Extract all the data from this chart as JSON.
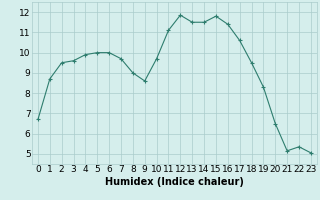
{
  "x": [
    0,
    1,
    2,
    3,
    4,
    5,
    6,
    7,
    8,
    9,
    10,
    11,
    12,
    13,
    14,
    15,
    16,
    17,
    18,
    19,
    20,
    21,
    22,
    23
  ],
  "y": [
    6.7,
    8.7,
    9.5,
    9.6,
    9.9,
    10.0,
    10.0,
    9.7,
    9.0,
    8.6,
    9.7,
    11.1,
    11.85,
    11.5,
    11.5,
    11.8,
    11.4,
    10.6,
    9.5,
    8.3,
    6.5,
    5.15,
    5.35,
    5.05
  ],
  "line_color": "#2e7d6e",
  "marker": "+",
  "marker_size": 3,
  "bg_color": "#d5eeec",
  "grid_color": "#aacccc",
  "xlabel": "Humidex (Indice chaleur)",
  "xlabel_fontsize": 7,
  "xlim": [
    -0.5,
    23.5
  ],
  "ylim": [
    4.5,
    12.5
  ],
  "yticks": [
    5,
    6,
    7,
    8,
    9,
    10,
    11,
    12
  ],
  "xticks": [
    0,
    1,
    2,
    3,
    4,
    5,
    6,
    7,
    8,
    9,
    10,
    11,
    12,
    13,
    14,
    15,
    16,
    17,
    18,
    19,
    20,
    21,
    22,
    23
  ],
  "tick_fontsize": 6.5
}
